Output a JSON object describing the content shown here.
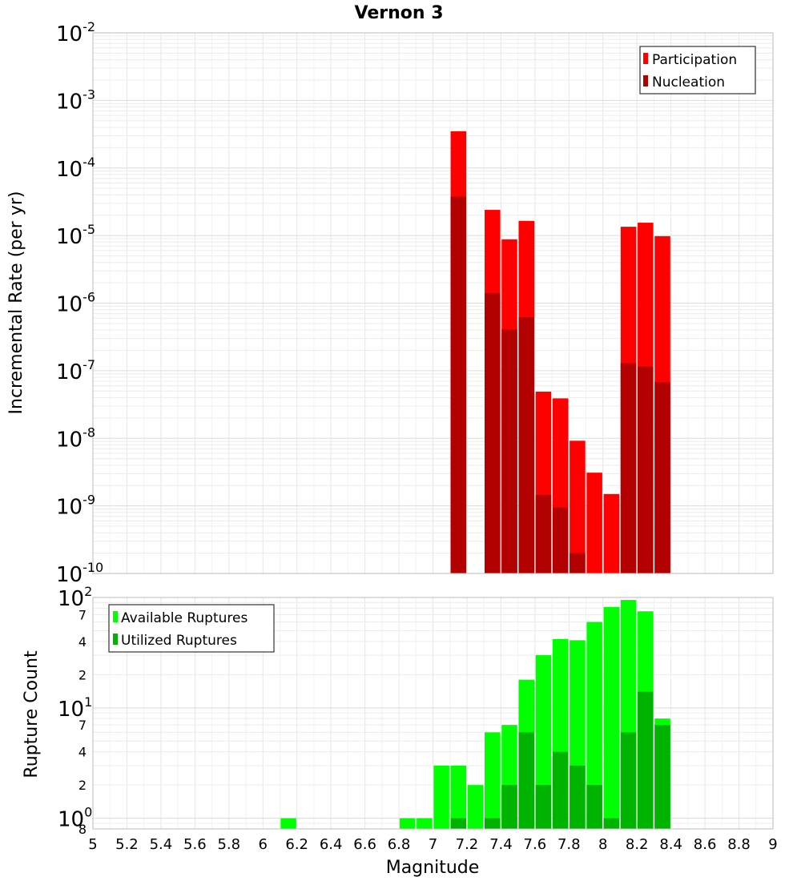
{
  "chart_data": [
    {
      "type": "bar",
      "title": "Vernon 3",
      "xlabel": "",
      "ylabel": "Incremental Rate (per yr)",
      "yscale": "log",
      "ylim": [
        1e-10,
        0.01
      ],
      "xlim": [
        5,
        9
      ],
      "grid": true,
      "legend_position": "top-right",
      "ytick_labels": [
        {
          "base": "10",
          "exp": "-10"
        },
        {
          "base": "10",
          "exp": "-9"
        },
        {
          "base": "10",
          "exp": "-8"
        },
        {
          "base": "10",
          "exp": "-7"
        },
        {
          "base": "10",
          "exp": "-6"
        },
        {
          "base": "10",
          "exp": "-5"
        },
        {
          "base": "10",
          "exp": "-4"
        },
        {
          "base": "10",
          "exp": "-3"
        },
        {
          "base": "10",
          "exp": "-2"
        }
      ],
      "x": [
        7.15,
        7.35,
        7.45,
        7.55,
        7.65,
        7.75,
        7.85,
        7.95,
        8.05,
        8.15,
        8.25,
        8.35
      ],
      "series": [
        {
          "name": "Participation",
          "color": "#ff0000",
          "values": [
            0.00035,
            2.4e-05,
            8.8e-06,
            1.65e-05,
            4.9e-08,
            3.9e-08,
            9.2e-09,
            3.1e-09,
            1.5e-09,
            1.35e-05,
            1.55e-05,
            9.8e-06
          ]
        },
        {
          "name": "Nucleation",
          "color": "#b30000",
          "values": [
            3.8e-05,
            1.4e-06,
            4.1e-07,
            6.2e-07,
            1.45e-09,
            9.5e-10,
            2e-10,
            null,
            null,
            1.3e-07,
            1.15e-07,
            6.8e-08
          ]
        }
      ]
    },
    {
      "type": "bar",
      "title": "",
      "xlabel": "Magnitude",
      "ylabel": "Rupture Count",
      "yscale": "log",
      "ylim": [
        0.8,
        100
      ],
      "xlim": [
        5,
        9
      ],
      "grid": true,
      "legend_position": "top-left",
      "major_tick_labels": [
        {
          "base": "10",
          "exp": "0"
        },
        {
          "base": "10",
          "exp": "1"
        },
        {
          "base": "10",
          "exp": "2"
        }
      ],
      "minor_tick_labels": [
        {
          "value": 0.8,
          "label": "8"
        },
        {
          "value": 2,
          "label": "2"
        },
        {
          "value": 4,
          "label": "4"
        },
        {
          "value": 7,
          "label": "7"
        },
        {
          "value": 20,
          "label": "2"
        },
        {
          "value": 40,
          "label": "4"
        },
        {
          "value": 70,
          "label": "7"
        }
      ],
      "xtick_labels": [
        "5",
        "5.2",
        "5.4",
        "5.6",
        "5.8",
        "6",
        "6.2",
        "6.4",
        "6.6",
        "6.8",
        "7",
        "7.2",
        "7.4",
        "7.6",
        "7.8",
        "8",
        "8.2",
        "8.4",
        "8.6",
        "8.8",
        "9"
      ],
      "x": [
        6.15,
        6.85,
        6.95,
        7.05,
        7.15,
        7.25,
        7.35,
        7.45,
        7.55,
        7.65,
        7.75,
        7.85,
        7.95,
        8.05,
        8.15,
        8.25,
        8.35
      ],
      "series": [
        {
          "name": "Available Ruptures",
          "color": "#00ff00",
          "values": [
            1,
            1,
            1,
            3,
            3,
            2,
            6,
            7,
            18,
            30,
            42,
            41,
            60,
            82,
            95,
            75,
            8
          ]
        },
        {
          "name": "Utilized Ruptures",
          "color": "#00b300",
          "values": [
            null,
            null,
            null,
            null,
            1,
            null,
            1,
            2,
            6,
            2,
            4,
            3,
            2,
            1,
            6,
            14,
            7
          ]
        }
      ]
    }
  ]
}
